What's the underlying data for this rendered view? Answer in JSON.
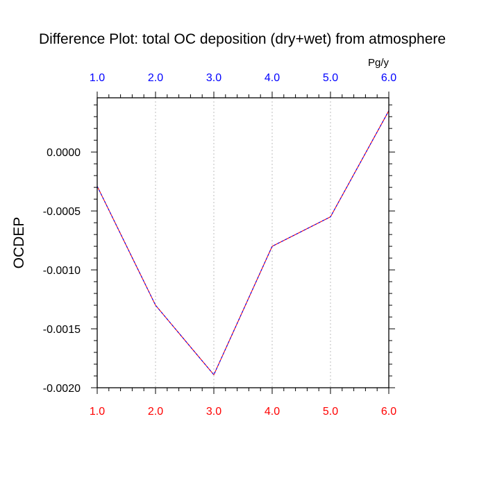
{
  "chart_data": {
    "type": "line",
    "title": "Difference Plot: total OC deposition (dry+wet) from atmosphere",
    "units": "Pg/y",
    "ylabel": "OCDEP",
    "xlabel": "",
    "x": [
      1.0,
      2.0,
      3.0,
      4.0,
      5.0,
      6.0
    ],
    "series": [
      {
        "values": [
          -0.00029,
          -0.0013,
          -0.00189,
          -0.0008,
          -0.00055,
          0.00035
        ]
      }
    ],
    "xlim": [
      1.0,
      6.0
    ],
    "ylim": [
      -0.002,
      0.00046
    ],
    "x_ticks": [
      1.0,
      2.0,
      3.0,
      4.0,
      5.0,
      6.0
    ],
    "x_tick_labels": [
      "1.0",
      "2.0",
      "3.0",
      "4.0",
      "5.0",
      "6.0"
    ],
    "y_ticks": [
      0.0,
      -0.0005,
      -0.001,
      -0.0015,
      -0.002
    ],
    "y_tick_labels": [
      "0.0000",
      "-0.0005",
      "-0.0010",
      "-0.0015",
      "-0.0020"
    ],
    "grid": "vertical dotted at major x ticks",
    "colors": {
      "line_main": "#ff0000",
      "line_overlay": "#0000ff",
      "top_tick_labels": "#0000ff",
      "bottom_tick_labels": "#ff0000",
      "grid": "#c8c8c8",
      "axes": "#000000"
    }
  }
}
